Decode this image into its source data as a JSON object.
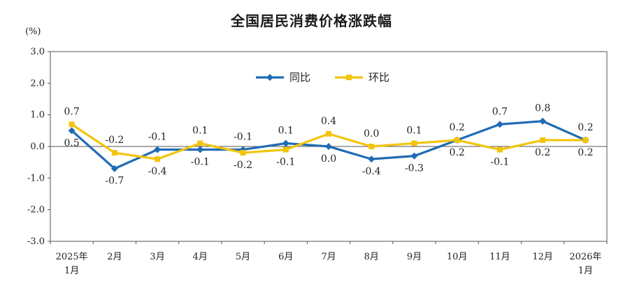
{
  "chart_data": {
    "type": "line",
    "title": "全国居民消费价格涨跌幅",
    "unit": "(%)",
    "ylim": [
      -3.0,
      3.0
    ],
    "y_ticks": [
      "3.0",
      "2.0",
      "1.0",
      "0.0",
      "-1.0",
      "-2.0",
      "-3.0"
    ],
    "categories": [
      [
        "2025年",
        "1月"
      ],
      [
        "2月"
      ],
      [
        "3月"
      ],
      [
        "4月"
      ],
      [
        "5月"
      ],
      [
        "6月"
      ],
      [
        "7月"
      ],
      [
        "8月"
      ],
      [
        "9月"
      ],
      [
        "10月"
      ],
      [
        "11月"
      ],
      [
        "12月"
      ],
      [
        "2026年",
        "1月"
      ]
    ],
    "grid": false,
    "legend_position": "top-center",
    "series": [
      {
        "name": "同比",
        "color": "#1f6bb5",
        "marker": "diamond",
        "values": [
          0.5,
          -0.7,
          -0.1,
          -0.1,
          -0.1,
          0.1,
          0.0,
          -0.4,
          -0.3,
          0.2,
          0.7,
          0.8,
          0.2
        ],
        "labels": [
          "0.5",
          "-0.7",
          "-0.1",
          "-0.1",
          "-0.1",
          "0.1",
          "0.0",
          "-0.4",
          "-0.3",
          "0.2",
          "0.7",
          "0.8",
          "0.2"
        ]
      },
      {
        "name": "环比",
        "color": "#f2c40d",
        "marker": "square",
        "values": [
          0.7,
          -0.2,
          -0.4,
          0.1,
          -0.2,
          -0.1,
          0.4,
          0.0,
          0.1,
          0.2,
          -0.1,
          0.2,
          0.2
        ],
        "labels": [
          "0.7",
          "-0.2",
          "-0.4",
          "0.1",
          "-0.2",
          "-0.1",
          "0.4",
          "0.0",
          "0.1",
          "0.2",
          "-0.1",
          "0.2",
          "0.2"
        ]
      }
    ]
  }
}
